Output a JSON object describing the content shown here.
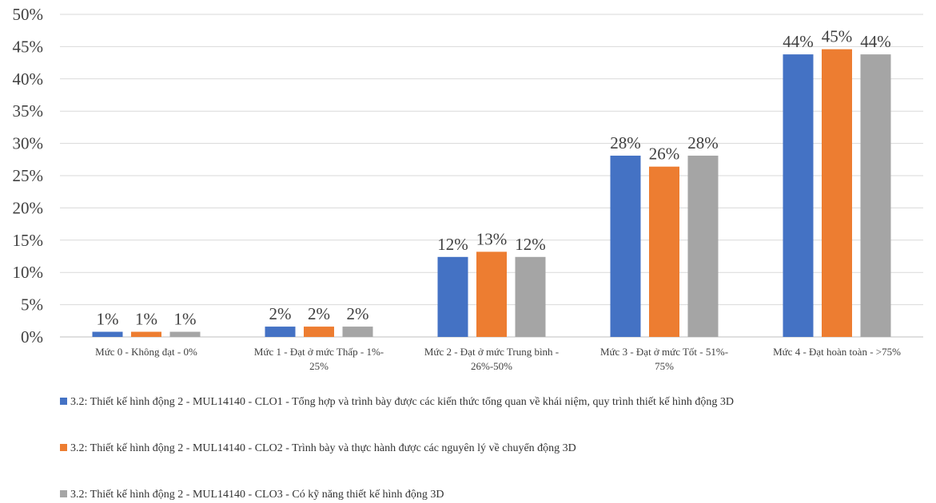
{
  "chart_data": {
    "type": "bar",
    "categories": [
      "Mức 0 - Không đạt - 0%",
      "Mức 1 - Đạt ở mức Thấp - 1%-25%",
      "Mức 2 - Đạt ở mức Trung bình - 26%-50%",
      "Mức 3 - Đạt ở mức Tốt - 51%-75%",
      "Mức 4 - Đạt hoàn toàn - >75%"
    ],
    "category_lines": [
      [
        "Mức 0 - Không đạt - 0%"
      ],
      [
        "Mức 1 - Đạt ở mức Thấp - 1%-",
        "25%"
      ],
      [
        "Mức 2 - Đạt ở mức Trung bình -",
        "26%-50%"
      ],
      [
        "Mức 3 - Đạt ở mức Tốt - 51%-",
        "75%"
      ],
      [
        "Mức 4 - Đạt hoàn toàn - >75%"
      ]
    ],
    "series": [
      {
        "name": "3.2: Thiết kế hình động 2 - MUL14140 - CLO1 - Tổng hợp và trình bày được các kiến thức tổng quan về khái niệm, quy trình thiết kế hình động 3D",
        "color": "#4472C4",
        "values": [
          0.8,
          1.6,
          12.4,
          28.1,
          43.8
        ],
        "labels": [
          "1%",
          "2%",
          "12%",
          "28%",
          "44%"
        ]
      },
      {
        "name": "3.2: Thiết kế hình động 2 - MUL14140 - CLO2 - Trình bày và thực hành được các nguyên lý về chuyển động 3D",
        "color": "#ED7D31",
        "values": [
          0.8,
          1.6,
          13.2,
          26.4,
          44.6
        ],
        "labels": [
          "1%",
          "2%",
          "13%",
          "26%",
          "45%"
        ]
      },
      {
        "name": "3.2: Thiết kế hình động 2 - MUL14140 - CLO3 - Có kỹ năng thiết kế hình động 3D",
        "color": "#A5A5A5",
        "values": [
          0.8,
          1.6,
          12.4,
          28.1,
          43.8
        ],
        "labels": [
          "1%",
          "2%",
          "12%",
          "28%",
          "44%"
        ]
      }
    ],
    "y_ticks": [
      "0%",
      "5%",
      "10%",
      "15%",
      "20%",
      "25%",
      "30%",
      "35%",
      "40%",
      "45%",
      "50%"
    ],
    "ylim": [
      0,
      50
    ],
    "grid": true,
    "legend_position": "bottom",
    "title": "",
    "xlabel": "",
    "ylabel": ""
  }
}
